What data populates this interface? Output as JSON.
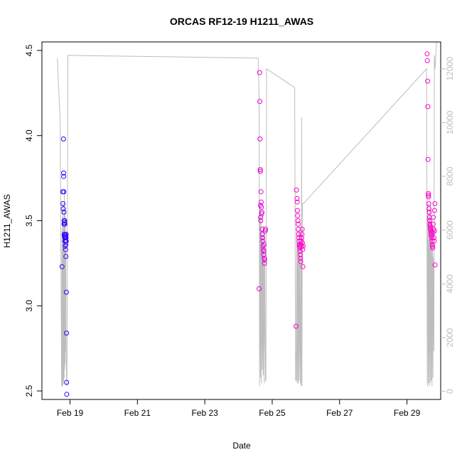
{
  "chart_data": {
    "type": "scatter",
    "title": "ORCAS RF12-19 H1211_AWAS",
    "xlabel": "Date",
    "ylabel": "H1211_AWAS",
    "xlim": [
      "2016-02-18 04:00",
      "2016-03-01 00:00"
    ],
    "ylim": [
      2.45,
      4.55
    ],
    "y2lim": [
      -300,
      13000
    ],
    "x_ticks": [
      "2016-02-19",
      "2016-02-21",
      "2016-02-23",
      "2016-02-25",
      "2016-02-27",
      "2016-02-29"
    ],
    "x_tick_labels": [
      "Feb 19",
      "Feb 21",
      "Feb 23",
      "Feb 25",
      "Feb 27",
      "Feb 29"
    ],
    "y_ticks": [
      "2.5",
      "3.0",
      "3.5",
      "4.0",
      "4.5"
    ],
    "y2_ticks": [
      "0",
      "2000",
      "4000",
      "6000",
      "8000",
      "10000",
      "12000"
    ],
    "grid": false,
    "colors": {
      "early": "#3300ff",
      "late": "#ff00cc",
      "altitude": "#bdbdbd"
    },
    "series": [
      {
        "role": "points",
        "points": [
          [
            "2016-02-18 18:20",
            3.23
          ],
          [
            "2016-02-18 18:50",
            3.67
          ],
          [
            "2016-02-18 19:00",
            3.6
          ],
          [
            "2016-02-18 19:10",
            3.57
          ],
          [
            "2016-02-18 19:20",
            3.98
          ],
          [
            "2016-02-18 19:25",
            3.78
          ],
          [
            "2016-02-18 19:30",
            3.76
          ],
          [
            "2016-02-18 19:35",
            3.67
          ],
          [
            "2016-02-18 19:40",
            3.55
          ],
          [
            "2016-02-18 19:45",
            3.48
          ],
          [
            "2016-02-18 19:50",
            3.5
          ],
          [
            "2016-02-18 19:55",
            3.42
          ],
          [
            "2016-02-18 20:00",
            3.41
          ],
          [
            "2016-02-18 20:05",
            3.49
          ],
          [
            "2016-02-18 20:10",
            3.5
          ],
          [
            "2016-02-18 20:15",
            3.48
          ],
          [
            "2016-02-18 20:20",
            3.4
          ],
          [
            "2016-02-18 20:25",
            3.38
          ],
          [
            "2016-02-18 20:30",
            3.42
          ],
          [
            "2016-02-18 20:35",
            3.35
          ],
          [
            "2016-02-18 20:40",
            3.4
          ],
          [
            "2016-02-18 20:45",
            3.38
          ],
          [
            "2016-02-18 20:50",
            3.33
          ],
          [
            "2016-02-18 20:55",
            3.41
          ],
          [
            "2016-02-18 21:00",
            3.36
          ],
          [
            "2016-02-18 21:05",
            3.29
          ],
          [
            "2016-02-18 21:10",
            3.4
          ],
          [
            "2016-02-18 21:15",
            3.42
          ],
          [
            "2016-02-18 21:20",
            3.38
          ],
          [
            "2016-02-18 21:25",
            3.08
          ],
          [
            "2016-02-18 21:30",
            2.84
          ],
          [
            "2016-02-18 21:35",
            2.55
          ],
          [
            "2016-02-18 21:40",
            2.48
          ],
          [
            "2016-02-24 14:40",
            3.1
          ],
          [
            "2016-02-24 15:00",
            4.37
          ],
          [
            "2016-02-24 15:10",
            4.2
          ],
          [
            "2016-02-24 15:20",
            3.98
          ],
          [
            "2016-02-24 15:30",
            3.8
          ],
          [
            "2016-02-24 15:35",
            3.79
          ],
          [
            "2016-02-24 15:40",
            3.59
          ],
          [
            "2016-02-24 15:45",
            3.52
          ],
          [
            "2016-02-24 15:50",
            3.5
          ],
          [
            "2016-02-24 16:00",
            3.67
          ],
          [
            "2016-02-24 16:10",
            3.61
          ],
          [
            "2016-02-24 16:20",
            3.58
          ],
          [
            "2016-02-24 16:30",
            3.54
          ],
          [
            "2016-02-24 16:40",
            3.55
          ],
          [
            "2016-02-24 16:50",
            3.45
          ],
          [
            "2016-02-24 17:00",
            3.42
          ],
          [
            "2016-02-24 17:10",
            3.4
          ],
          [
            "2016-02-24 17:20",
            3.38
          ],
          [
            "2016-02-24 17:30",
            3.35
          ],
          [
            "2016-02-24 17:40",
            3.33
          ],
          [
            "2016-02-24 17:50",
            3.3
          ],
          [
            "2016-02-24 18:00",
            3.32
          ],
          [
            "2016-02-24 18:10",
            3.36
          ],
          [
            "2016-02-24 18:20",
            3.28
          ],
          [
            "2016-02-24 18:30",
            3.25
          ],
          [
            "2016-02-24 18:40",
            3.27
          ],
          [
            "2016-02-24 19:00",
            3.44
          ],
          [
            "2016-02-24 19:20",
            3.45
          ],
          [
            "2016-02-25 17:00",
            2.88
          ],
          [
            "2016-02-25 17:20",
            3.68
          ],
          [
            "2016-02-25 17:40",
            3.63
          ],
          [
            "2016-02-25 17:50",
            3.61
          ],
          [
            "2016-02-25 18:00",
            3.56
          ],
          [
            "2016-02-25 18:10",
            3.53
          ],
          [
            "2016-02-25 18:20",
            3.5
          ],
          [
            "2016-02-25 18:30",
            3.48
          ],
          [
            "2016-02-25 18:40",
            3.45
          ],
          [
            "2016-02-25 18:50",
            3.42
          ],
          [
            "2016-02-25 19:00",
            3.4
          ],
          [
            "2016-02-25 19:10",
            3.38
          ],
          [
            "2016-02-25 19:20",
            3.36
          ],
          [
            "2016-02-25 19:30",
            3.35
          ],
          [
            "2016-02-25 19:40",
            3.34
          ],
          [
            "2016-02-25 19:50",
            3.32
          ],
          [
            "2016-02-25 20:00",
            3.3
          ],
          [
            "2016-02-25 20:10",
            3.28
          ],
          [
            "2016-02-25 20:20",
            3.26
          ],
          [
            "2016-02-25 20:30",
            3.36
          ],
          [
            "2016-02-25 20:40",
            3.38
          ],
          [
            "2016-02-25 20:50",
            3.35
          ],
          [
            "2016-02-25 21:00",
            3.4
          ],
          [
            "2016-02-25 21:10",
            3.42
          ],
          [
            "2016-02-25 21:20",
            3.45
          ],
          [
            "2016-02-25 21:30",
            3.37
          ],
          [
            "2016-02-25 21:40",
            3.33
          ],
          [
            "2016-02-25 21:50",
            3.23
          ],
          [
            "2016-02-25 22:00",
            3.35
          ],
          [
            "2016-02-29 14:20",
            4.48
          ],
          [
            "2016-02-29 14:30",
            4.44
          ],
          [
            "2016-02-29 14:40",
            4.32
          ],
          [
            "2016-02-29 14:50",
            4.17
          ],
          [
            "2016-02-29 15:00",
            3.86
          ],
          [
            "2016-02-29 15:10",
            3.66
          ],
          [
            "2016-02-29 15:15",
            3.65
          ],
          [
            "2016-02-29 15:20",
            3.64
          ],
          [
            "2016-02-29 15:30",
            3.6
          ],
          [
            "2016-02-29 15:40",
            3.57
          ],
          [
            "2016-02-29 15:50",
            3.55
          ],
          [
            "2016-02-29 16:00",
            3.52
          ],
          [
            "2016-02-29 16:10",
            3.5
          ],
          [
            "2016-02-29 16:20",
            3.48
          ],
          [
            "2016-02-29 16:30",
            3.47
          ],
          [
            "2016-02-29 16:40",
            3.46
          ],
          [
            "2016-02-29 16:50",
            3.45
          ],
          [
            "2016-02-29 17:00",
            3.44
          ],
          [
            "2016-02-29 17:10",
            3.43
          ],
          [
            "2016-02-29 17:20",
            3.42
          ],
          [
            "2016-02-29 17:30",
            3.41
          ],
          [
            "2016-02-29 17:40",
            3.4
          ],
          [
            "2016-02-29 17:50",
            3.38
          ],
          [
            "2016-02-29 18:00",
            3.36
          ],
          [
            "2016-02-29 18:10",
            3.35
          ],
          [
            "2016-02-29 18:20",
            3.34
          ],
          [
            "2016-02-29 18:30",
            3.43
          ],
          [
            "2016-02-29 18:40",
            3.48
          ],
          [
            "2016-02-29 18:50",
            3.52
          ],
          [
            "2016-02-29 19:00",
            3.45
          ],
          [
            "2016-02-29 19:10",
            3.4
          ],
          [
            "2016-02-29 19:20",
            3.38
          ],
          [
            "2016-02-29 19:30",
            3.44
          ],
          [
            "2016-02-29 19:40",
            3.56
          ],
          [
            "2016-02-29 19:50",
            3.6
          ],
          [
            "2016-02-29 20:00",
            3.24
          ]
        ]
      },
      {
        "role": "altitude",
        "axis": "right",
        "points": [
          [
            "2016-02-18 15:00",
            12400
          ],
          [
            "2016-02-18 17:00",
            10000
          ],
          [
            "2016-02-18 18:00",
            200
          ],
          [
            "2016-02-18 18:20",
            6000
          ],
          [
            "2016-02-18 18:30",
            200
          ],
          [
            "2016-02-18 18:40",
            6500
          ],
          [
            "2016-02-18 18:50",
            200
          ],
          [
            "2016-02-18 19:00",
            7000
          ],
          [
            "2016-02-18 19:10",
            400
          ],
          [
            "2016-02-18 19:20",
            5000
          ],
          [
            "2016-02-18 19:30",
            300
          ],
          [
            "2016-02-18 19:40",
            6200
          ],
          [
            "2016-02-18 19:50",
            500
          ],
          [
            "2016-02-18 20:00",
            7500
          ],
          [
            "2016-02-18 20:10",
            800
          ],
          [
            "2016-02-18 20:20",
            6800
          ],
          [
            "2016-02-18 20:30",
            1000
          ],
          [
            "2016-02-18 20:40",
            6500
          ],
          [
            "2016-02-18 20:50",
            1500
          ],
          [
            "2016-02-18 21:00",
            5500
          ],
          [
            "2016-02-18 21:10",
            2000
          ],
          [
            "2016-02-18 21:30",
            500
          ],
          [
            "2016-02-18 21:50",
            200
          ],
          [
            "2016-02-18 22:30",
            12500
          ],
          [
            "2016-02-24 14:00",
            12400
          ],
          [
            "2016-02-24 14:40",
            11000
          ],
          [
            "2016-02-24 15:00",
            200
          ],
          [
            "2016-02-24 15:20",
            7000
          ],
          [
            "2016-02-24 15:40",
            500
          ],
          [
            "2016-02-24 16:00",
            6500
          ],
          [
            "2016-02-24 16:20",
            300
          ],
          [
            "2016-02-24 16:40",
            6000
          ],
          [
            "2016-02-24 17:00",
            800
          ],
          [
            "2016-02-24 17:20",
            5800
          ],
          [
            "2016-02-24 17:40",
            600
          ],
          [
            "2016-02-24 18:00",
            6200
          ],
          [
            "2016-02-24 18:20",
            300
          ],
          [
            "2016-02-24 18:40",
            5000
          ],
          [
            "2016-02-24 19:00",
            2000
          ],
          [
            "2016-02-24 19:20",
            400
          ],
          [
            "2016-02-24 19:30",
            400
          ],
          [
            "2016-02-24 20:00",
            12000
          ],
          [
            "2016-02-25 16:00",
            11300
          ],
          [
            "2016-02-25 16:40",
            400
          ],
          [
            "2016-02-25 17:00",
            1500
          ],
          [
            "2016-02-25 17:10",
            400
          ],
          [
            "2016-02-25 17:30",
            6000
          ],
          [
            "2016-02-25 17:50",
            300
          ],
          [
            "2016-02-25 18:10",
            5500
          ],
          [
            "2016-02-25 18:30",
            300
          ],
          [
            "2016-02-25 18:50",
            6000
          ],
          [
            "2016-02-25 19:10",
            400
          ],
          [
            "2016-02-25 19:30",
            5500
          ],
          [
            "2016-02-25 19:50",
            1400
          ],
          [
            "2016-02-25 20:00",
            300
          ],
          [
            "2016-02-25 20:20",
            5000
          ],
          [
            "2016-02-25 20:40",
            200
          ],
          [
            "2016-02-25 21:00",
            10200
          ],
          [
            "2016-02-25 21:10",
            200
          ],
          [
            "2016-02-25 21:30",
            7000
          ],
          [
            "2016-02-25 22:30",
            7000
          ],
          [
            "2016-02-29 14:00",
            12000
          ],
          [
            "2016-02-29 14:30",
            200
          ],
          [
            "2016-02-29 14:50",
            7000
          ],
          [
            "2016-02-29 15:10",
            300
          ],
          [
            "2016-02-29 15:30",
            6500
          ],
          [
            "2016-02-29 15:50",
            200
          ],
          [
            "2016-02-29 16:10",
            6800
          ],
          [
            "2016-02-29 16:30",
            300
          ],
          [
            "2016-02-29 16:50",
            7000
          ],
          [
            "2016-02-29 17:10",
            400
          ],
          [
            "2016-02-29 17:30",
            6200
          ],
          [
            "2016-02-29 17:50",
            200
          ],
          [
            "2016-02-29 18:10",
            6000
          ],
          [
            "2016-02-29 18:30",
            500
          ],
          [
            "2016-02-29 18:50",
            5000
          ],
          [
            "2016-02-29 19:10",
            1500
          ],
          [
            "2016-02-29 19:30",
            12500
          ],
          [
            "2016-02-29 20:00",
            12000
          ],
          [
            "2016-02-29 21:00",
            13000
          ]
        ]
      }
    ]
  }
}
